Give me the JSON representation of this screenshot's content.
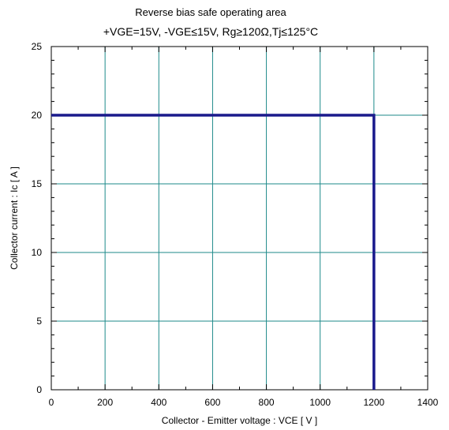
{
  "chart_data": {
    "type": "line",
    "title": "Reverse bias safe operating area",
    "subtitle": "+VGE=15V, -VGE≤15V, Rg≥120Ω,Tj≤125°C",
    "xlabel": "Collector - Emitter voltage  :  VCE  [ V ]",
    "ylabel": "Collector current  : Ic  [ A ]",
    "xlim": [
      0,
      1400
    ],
    "ylim": [
      0,
      25
    ],
    "xticks": [
      0,
      200,
      400,
      600,
      800,
      1000,
      1200,
      1400
    ],
    "yticks": [
      0,
      5,
      10,
      15,
      20,
      25
    ],
    "grid": true,
    "series": [
      {
        "x": [
          0,
          1200,
          1200
        ],
        "y": [
          20,
          20,
          0
        ],
        "color": "#1a1a8c"
      }
    ],
    "grid_color": "#1e8a8a"
  }
}
